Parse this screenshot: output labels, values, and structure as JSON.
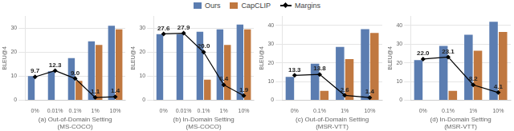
{
  "chart_data": [
    {
      "type": "bar",
      "xlabel": "(a) Out-of-Domain Setting\n(MS-COCO)",
      "ylabel": "BLEU@4",
      "categories": [
        "0%",
        "0.01%",
        "0.1%",
        "1%",
        "10%"
      ],
      "series": [
        {
          "name": "Ours",
          "color": "#5B7DB1",
          "values": [
            10.0,
            12.0,
            17.5,
            24.5,
            31.0
          ]
        },
        {
          "name": "CapCLIP",
          "color": "#C07840",
          "values": [
            null,
            null,
            8.0,
            23.0,
            29.5
          ]
        },
        {
          "name": "Margins",
          "type": "line",
          "color": "black",
          "marker": "diamond",
          "data_labels": true,
          "values": [
            9.7,
            12.3,
            9.0,
            1.1,
            1.4
          ],
          "value_labels": [
            "9.7",
            "12.3",
            "9.0",
            "1.1",
            "1.4"
          ]
        }
      ],
      "ylim": [
        0,
        35
      ],
      "yticks": [
        0,
        10,
        20,
        30
      ],
      "grid": true,
      "legend": "top"
    },
    {
      "type": "bar",
      "xlabel": "(b) In-Domain Setting\n(MS-COCO)",
      "ylabel": "BLEU@4",
      "categories": [
        "0%",
        "0.01%",
        "0.1%",
        "1%",
        "10%"
      ],
      "series": [
        {
          "name": "Ours",
          "color": "#5B7DB1",
          "values": [
            27.5,
            27.5,
            28.5,
            29.5,
            31.5
          ]
        },
        {
          "name": "CapCLIP",
          "color": "#C07840",
          "values": [
            null,
            null,
            8.5,
            23.0,
            29.5
          ]
        },
        {
          "name": "Margins",
          "type": "line",
          "color": "black",
          "marker": "diamond",
          "data_labels": true,
          "values": [
            27.6,
            27.9,
            20.0,
            6.4,
            1.9
          ],
          "value_labels": [
            "27.6",
            "27.9",
            "20.0",
            "6.4",
            "1.9"
          ]
        }
      ],
      "ylim": [
        0,
        35
      ],
      "yticks": [
        0,
        10,
        20,
        30
      ],
      "grid": true,
      "legend": "top"
    },
    {
      "type": "bar",
      "xlabel": "(c) Out-of-Domain Setting\n(MSR-VTT)",
      "ylabel": "BLEU@4",
      "categories": [
        "0%",
        "0.1%",
        "1%",
        "10%"
      ],
      "series": [
        {
          "name": "Ours",
          "color": "#5B7DB1",
          "values": [
            12.5,
            19.5,
            28.5,
            38.0
          ]
        },
        {
          "name": "CapCLIP",
          "color": "#C07840",
          "values": [
            null,
            5.0,
            22.0,
            36.0
          ]
        },
        {
          "name": "Margins",
          "type": "line",
          "color": "black",
          "marker": "diamond",
          "data_labels": true,
          "values": [
            13.3,
            13.8,
            2.6,
            1.4
          ],
          "value_labels": [
            "13.3",
            "13.8",
            "2.6",
            "1.4"
          ]
        }
      ],
      "ylim": [
        0,
        45
      ],
      "yticks": [
        0,
        10,
        20,
        30,
        40
      ],
      "grid": true,
      "legend": "top"
    },
    {
      "type": "bar",
      "xlabel": "(d) In-Domain Setting\n(MSR-VTT)",
      "ylabel": "BLEU@4",
      "categories": [
        "0%",
        "0.1%",
        "1%",
        "10%"
      ],
      "series": [
        {
          "name": "Ours",
          "color": "#5B7DB1",
          "values": [
            21.5,
            29.0,
            35.0,
            42.0
          ]
        },
        {
          "name": "CapCLIP",
          "color": "#C07840",
          "values": [
            null,
            5.0,
            26.5,
            36.5
          ]
        },
        {
          "name": "Margins",
          "type": "line",
          "color": "black",
          "marker": "diamond",
          "data_labels": true,
          "values": [
            22.0,
            23.1,
            8.2,
            4.1
          ],
          "value_labels": [
            "22.0",
            "23.1",
            "8.2",
            "4.1"
          ]
        }
      ],
      "ylim": [
        0,
        45
      ],
      "yticks": [
        0,
        10,
        20,
        30,
        40
      ],
      "grid": true,
      "legend": "top"
    }
  ]
}
